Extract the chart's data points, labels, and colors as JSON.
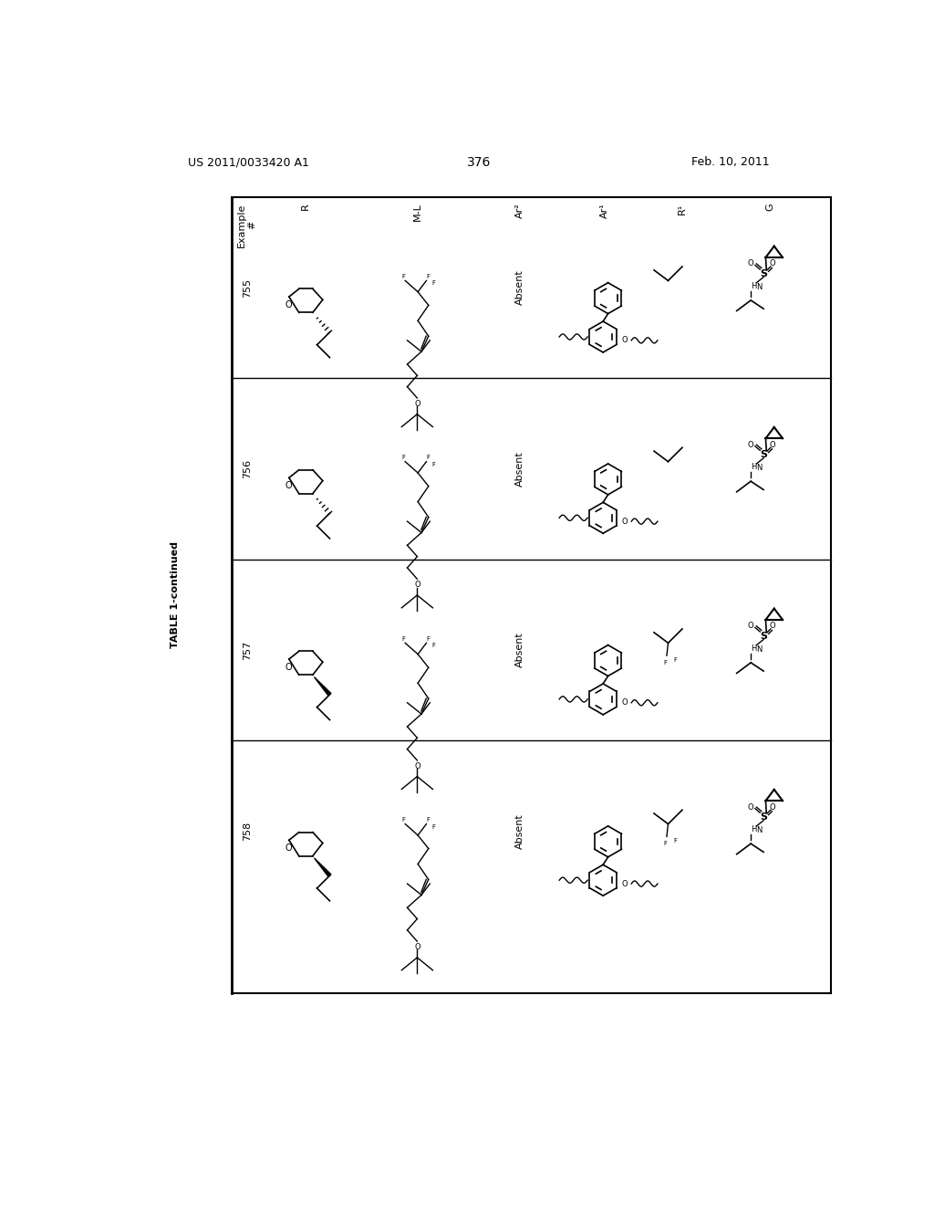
{
  "title_left": "US 2011/0033420 A1",
  "title_right": "Feb. 10, 2011",
  "page_number": "376",
  "table_title": "TABLE 1-continued",
  "col_headers": [
    "Example\n#",
    "R",
    "M-L",
    "Ar2",
    "Ar1",
    "R1",
    "G"
  ],
  "col_headers_display": [
    "Example\n#",
    "R",
    "M-L",
    "Ar²",
    "Ar¹",
    "R¹",
    "G"
  ],
  "example_numbers": [
    "755",
    "756",
    "757",
    "758"
  ],
  "ar2_label": "Absent",
  "background": "#ffffff",
  "line_color": "#000000"
}
